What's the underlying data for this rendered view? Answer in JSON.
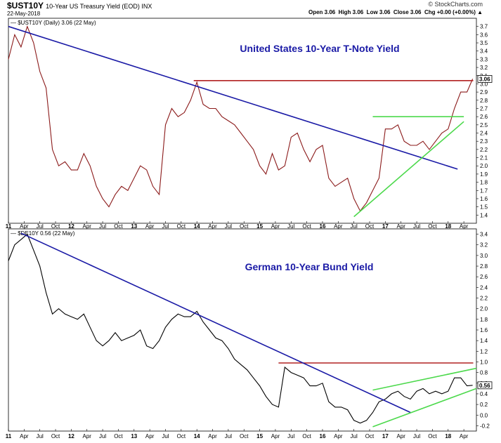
{
  "header": {
    "symbol": "$UST10Y",
    "description": "10-Year US Treasury Yield (EOD)  INX",
    "date": "22-May-2018",
    "brand": "© StockCharts.com",
    "ohlc": "Open 3.06  High 3.06  Low 3.06  Close 3.06  Chg +0.00 (+0.00%) ▲"
  },
  "chart_data": [
    {
      "type": "line",
      "legend": "— $UST10Y (Daily) 3.06 (22 May)",
      "title": "United States 10-Year T-Note Yield",
      "ylim": [
        1.3,
        3.8
      ],
      "yticks": [
        1.4,
        1.5,
        1.6,
        1.7,
        1.8,
        1.9,
        2.0,
        2.1,
        2.2,
        2.3,
        2.4,
        2.5,
        2.6,
        2.7,
        2.8,
        2.9,
        3.0,
        3.1,
        3.2,
        3.3,
        3.4,
        3.5,
        3.6,
        3.7
      ],
      "last_value_label": "3.06",
      "colors": {
        "line": "#8b1a1a",
        "resistance": "#b22222",
        "downtrend": "#1a1aa6",
        "uptrend": "#4cd94c"
      },
      "x": [
        2011.0,
        2011.1,
        2011.2,
        2011.3,
        2011.4,
        2011.5,
        2011.6,
        2011.7,
        2011.8,
        2011.9,
        2012.0,
        2012.1,
        2012.2,
        2012.3,
        2012.4,
        2012.5,
        2012.6,
        2012.7,
        2012.8,
        2012.9,
        2013.0,
        2013.1,
        2013.2,
        2013.3,
        2013.4,
        2013.5,
        2013.6,
        2013.7,
        2013.8,
        2013.9,
        2014.0,
        2014.1,
        2014.2,
        2014.3,
        2014.4,
        2014.5,
        2014.6,
        2014.7,
        2014.8,
        2014.9,
        2015.0,
        2015.1,
        2015.2,
        2015.3,
        2015.4,
        2015.5,
        2015.6,
        2015.7,
        2015.8,
        2015.9,
        2016.0,
        2016.1,
        2016.2,
        2016.3,
        2016.4,
        2016.5,
        2016.6,
        2016.7,
        2016.8,
        2016.9,
        2017.0,
        2017.1,
        2017.2,
        2017.3,
        2017.4,
        2017.5,
        2017.6,
        2017.7,
        2017.8,
        2017.9,
        2018.0,
        2018.1,
        2018.2,
        2018.3,
        2018.39
      ],
      "y": [
        3.3,
        3.6,
        3.45,
        3.7,
        3.5,
        3.15,
        2.95,
        2.2,
        2.0,
        2.05,
        1.95,
        1.95,
        2.15,
        2.0,
        1.75,
        1.6,
        1.5,
        1.65,
        1.75,
        1.7,
        1.85,
        2.0,
        1.95,
        1.75,
        1.65,
        2.5,
        2.7,
        2.6,
        2.65,
        2.8,
        3.02,
        2.75,
        2.7,
        2.7,
        2.6,
        2.55,
        2.5,
        2.4,
        2.3,
        2.2,
        2.0,
        1.9,
        2.15,
        1.95,
        2.0,
        2.35,
        2.4,
        2.2,
        2.05,
        2.2,
        2.25,
        1.85,
        1.75,
        1.8,
        1.85,
        1.6,
        1.45,
        1.55,
        1.7,
        1.85,
        2.45,
        2.45,
        2.5,
        2.3,
        2.25,
        2.25,
        2.3,
        2.2,
        2.3,
        2.4,
        2.45,
        2.7,
        2.9,
        2.9,
        3.06
      ],
      "resistance": {
        "x": [
          2013.95,
          2018.4
        ],
        "y": [
          3.04,
          3.04
        ]
      },
      "resistance_low": {
        "x": [
          2016.8,
          2018.25
        ],
        "y": [
          2.6,
          2.6
        ]
      },
      "downtrend": {
        "x": [
          2011.0,
          2018.15
        ],
        "y": [
          3.7,
          1.96
        ]
      },
      "uptrend": {
        "x": [
          2016.5,
          2018.25
        ],
        "y": [
          1.38,
          2.54
        ]
      }
    },
    {
      "type": "line",
      "legend": "— $DE10Y 0.56 (22 May)",
      "title": "German 10-Year Bund Yield",
      "ylim": [
        -0.3,
        3.5
      ],
      "yticks": [
        -0.2,
        0.0,
        0.2,
        0.4,
        0.6,
        0.8,
        1.0,
        1.2,
        1.4,
        1.6,
        1.8,
        2.0,
        2.2,
        2.4,
        2.6,
        2.8,
        3.0,
        3.2,
        3.4
      ],
      "last_value_label": "0.56",
      "colors": {
        "line": "#000000",
        "resistance": "#b22222",
        "downtrend": "#1a1aa6",
        "uptrend": "#4cd94c"
      },
      "x": [
        2011.0,
        2011.1,
        2011.2,
        2011.3,
        2011.4,
        2011.5,
        2011.6,
        2011.7,
        2011.8,
        2011.9,
        2012.0,
        2012.1,
        2012.2,
        2012.3,
        2012.4,
        2012.5,
        2012.6,
        2012.7,
        2012.8,
        2012.9,
        2013.0,
        2013.1,
        2013.2,
        2013.3,
        2013.4,
        2013.5,
        2013.6,
        2013.7,
        2013.8,
        2013.9,
        2014.0,
        2014.1,
        2014.2,
        2014.3,
        2014.4,
        2014.5,
        2014.6,
        2014.7,
        2014.8,
        2014.9,
        2015.0,
        2015.1,
        2015.2,
        2015.3,
        2015.4,
        2015.5,
        2015.6,
        2015.7,
        2015.8,
        2015.9,
        2016.0,
        2016.1,
        2016.2,
        2016.3,
        2016.4,
        2016.5,
        2016.6,
        2016.7,
        2016.8,
        2016.9,
        2017.0,
        2017.1,
        2017.2,
        2017.3,
        2017.4,
        2017.5,
        2017.6,
        2017.7,
        2017.8,
        2017.9,
        2018.0,
        2018.1,
        2018.2,
        2018.3,
        2018.39
      ],
      "y": [
        2.9,
        3.2,
        3.3,
        3.4,
        3.1,
        2.8,
        2.3,
        1.9,
        2.0,
        1.9,
        1.85,
        1.8,
        1.9,
        1.65,
        1.4,
        1.3,
        1.4,
        1.55,
        1.4,
        1.45,
        1.5,
        1.6,
        1.3,
        1.25,
        1.4,
        1.65,
        1.8,
        1.9,
        1.85,
        1.85,
        1.95,
        1.75,
        1.6,
        1.45,
        1.4,
        1.25,
        1.05,
        0.95,
        0.85,
        0.7,
        0.55,
        0.35,
        0.2,
        0.15,
        0.9,
        0.8,
        0.75,
        0.7,
        0.55,
        0.55,
        0.6,
        0.25,
        0.15,
        0.15,
        0.1,
        -0.1,
        -0.15,
        -0.1,
        0.05,
        0.25,
        0.3,
        0.4,
        0.45,
        0.35,
        0.3,
        0.45,
        0.5,
        0.4,
        0.45,
        0.4,
        0.45,
        0.7,
        0.7,
        0.55,
        0.56
      ],
      "resistance": {
        "x": [
          2015.3,
          2018.4
        ],
        "y": [
          0.98,
          0.98
        ]
      },
      "downtrend": {
        "x": [
          2011.2,
          2017.4
        ],
        "y": [
          3.42,
          0.05
        ]
      },
      "uptrend": {
        "x": [
          2016.8,
          2018.45
        ],
        "y": [
          -0.22,
          0.5
        ]
      },
      "uptrend_upper": {
        "x": [
          2016.8,
          2018.45
        ],
        "y": [
          0.47,
          0.88
        ]
      }
    }
  ],
  "xticks": [
    {
      "v": 2011.0,
      "t": "11",
      "bold": true
    },
    {
      "v": 2011.25,
      "t": "Apr"
    },
    {
      "v": 2011.5,
      "t": "Jul"
    },
    {
      "v": 2011.75,
      "t": "Oct"
    },
    {
      "v": 2012.0,
      "t": "12",
      "bold": true
    },
    {
      "v": 2012.25,
      "t": "Apr"
    },
    {
      "v": 2012.5,
      "t": "Jul"
    },
    {
      "v": 2012.75,
      "t": "Oct"
    },
    {
      "v": 2013.0,
      "t": "13",
      "bold": true
    },
    {
      "v": 2013.25,
      "t": "Apr"
    },
    {
      "v": 2013.5,
      "t": "Jul"
    },
    {
      "v": 2013.75,
      "t": "Oct"
    },
    {
      "v": 2014.0,
      "t": "14",
      "bold": true
    },
    {
      "v": 2014.25,
      "t": "Apr"
    },
    {
      "v": 2014.5,
      "t": "Jul"
    },
    {
      "v": 2014.75,
      "t": "Oct"
    },
    {
      "v": 2015.0,
      "t": "15",
      "bold": true
    },
    {
      "v": 2015.25,
      "t": "Apr"
    },
    {
      "v": 2015.5,
      "t": "Jul"
    },
    {
      "v": 2015.75,
      "t": "Oct"
    },
    {
      "v": 2016.0,
      "t": "16",
      "bold": true
    },
    {
      "v": 2016.25,
      "t": "Apr"
    },
    {
      "v": 2016.5,
      "t": "Jul"
    },
    {
      "v": 2016.75,
      "t": "Oct"
    },
    {
      "v": 2017.0,
      "t": "17",
      "bold": true
    },
    {
      "v": 2017.25,
      "t": "Apr"
    },
    {
      "v": 2017.5,
      "t": "Jul"
    },
    {
      "v": 2017.75,
      "t": "Oct"
    },
    {
      "v": 2018.0,
      "t": "18",
      "bold": true
    },
    {
      "v": 2018.25,
      "t": "Apr"
    }
  ]
}
